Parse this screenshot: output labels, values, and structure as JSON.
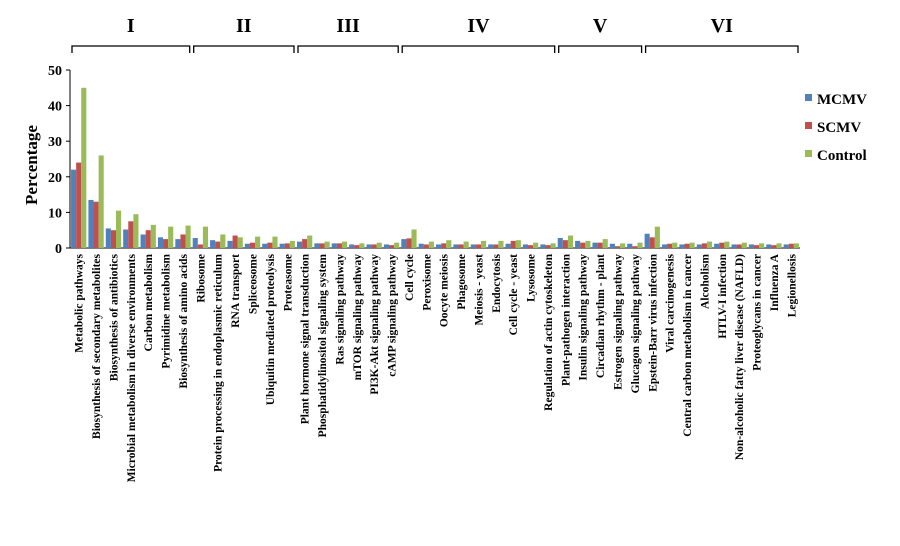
{
  "chart_data": {
    "type": "bar",
    "ylabel": "Percentage",
    "ylim": [
      0,
      50
    ],
    "yticks": [
      0,
      10,
      20,
      30,
      40,
      50
    ],
    "legend_position": "right",
    "categories": [
      "Metabolic pathways",
      "Biosynthesis of secondary metabolites",
      "Biosynthesis of antibiotics",
      "Microbial metabolism in diverse environments",
      "Carbon metabolism",
      "Pyrimidine metabolism",
      "Biosynthesis of amino acids",
      "Ribosome",
      "Protein processing in endoplasmic reticulum",
      "RNA transport",
      "Spliceosome",
      "Ubiquitin mediated proteolysis",
      "Proteasome",
      "Plant hormone signal transduction",
      "Phosphatidylinositol signaling system",
      "Ras signaling pathway",
      "mTOR signaling pathway",
      "PI3K-Akt signaling pathway",
      "cAMP signaling pathway",
      "Cell cycle",
      "Peroxisome",
      "Oocyte meiosis",
      "Phagosome",
      "Meiosis - yeast",
      "Endocytosis",
      "Cell cycle - yeast",
      "Lysosome",
      "Regulation of actin cytoskeleton",
      "Plant-pathogen interaction",
      "Insulin signaling pathway",
      "Circadian rhythm - plant",
      "Estrogen signaling pathway",
      "Glucagon signaling pathway",
      "Epstein-Barr virus infection",
      "Viral carcinogenesis",
      "Central carbon metabolism in cancer",
      "Alcoholism",
      "HTLV-I infection",
      "Non-alcoholic fatty liver disease (NAFLD)",
      "Proteoglycans in cancer",
      "Influenza A",
      "Legionellosis"
    ],
    "series": [
      {
        "name": "MCMV",
        "color": "#4f81bd",
        "values": [
          22,
          13.5,
          5.5,
          5.2,
          3.8,
          3,
          2.5,
          2.8,
          2.2,
          2,
          1.2,
          1.2,
          1.2,
          1.8,
          1.3,
          1.3,
          1,
          1,
          1,
          2.5,
          1.2,
          1,
          1,
          1,
          1,
          1.2,
          1,
          1,
          2.8,
          2,
          1.5,
          1.2,
          1.2,
          4,
          1,
          1,
          1,
          1.2,
          1,
          1,
          1,
          1
        ]
      },
      {
        "name": "SCMV",
        "color": "#c0504d",
        "values": [
          24,
          13,
          5,
          7.5,
          5,
          2.5,
          3.8,
          1,
          1.8,
          3.5,
          1.5,
          1.5,
          1.3,
          2.5,
          1.3,
          1.3,
          0.8,
          1,
          0.8,
          2.7,
          1,
          1.3,
          1,
          1,
          1,
          2,
          0.8,
          0.8,
          2.2,
          1.5,
          1.5,
          0.5,
          0.5,
          3,
          1.2,
          1.2,
          1.3,
          1.5,
          1,
          0.8,
          0.8,
          1.2
        ]
      },
      {
        "name": "Control",
        "color": "#9bbb59",
        "values": [
          45,
          26,
          10.5,
          9.5,
          6.5,
          6,
          6.3,
          6,
          3.8,
          3,
          3.2,
          3.2,
          2,
          3.5,
          1.8,
          1.8,
          1.3,
          1.5,
          1.5,
          5.2,
          1.8,
          2.2,
          1.8,
          2,
          2,
          2.2,
          1.5,
          1.3,
          3.5,
          2,
          2.5,
          1.3,
          1.5,
          6,
          1.5,
          1.5,
          1.8,
          1.8,
          1.5,
          1.3,
          1.3,
          1.3
        ]
      }
    ],
    "groups": [
      {
        "label": "I",
        "from": 0,
        "to": 6
      },
      {
        "label": "II",
        "from": 7,
        "to": 12
      },
      {
        "label": "III",
        "from": 13,
        "to": 18
      },
      {
        "label": "IV",
        "from": 19,
        "to": 27
      },
      {
        "label": "V",
        "from": 28,
        "to": 32
      },
      {
        "label": "VI",
        "from": 33,
        "to": 41
      }
    ]
  }
}
